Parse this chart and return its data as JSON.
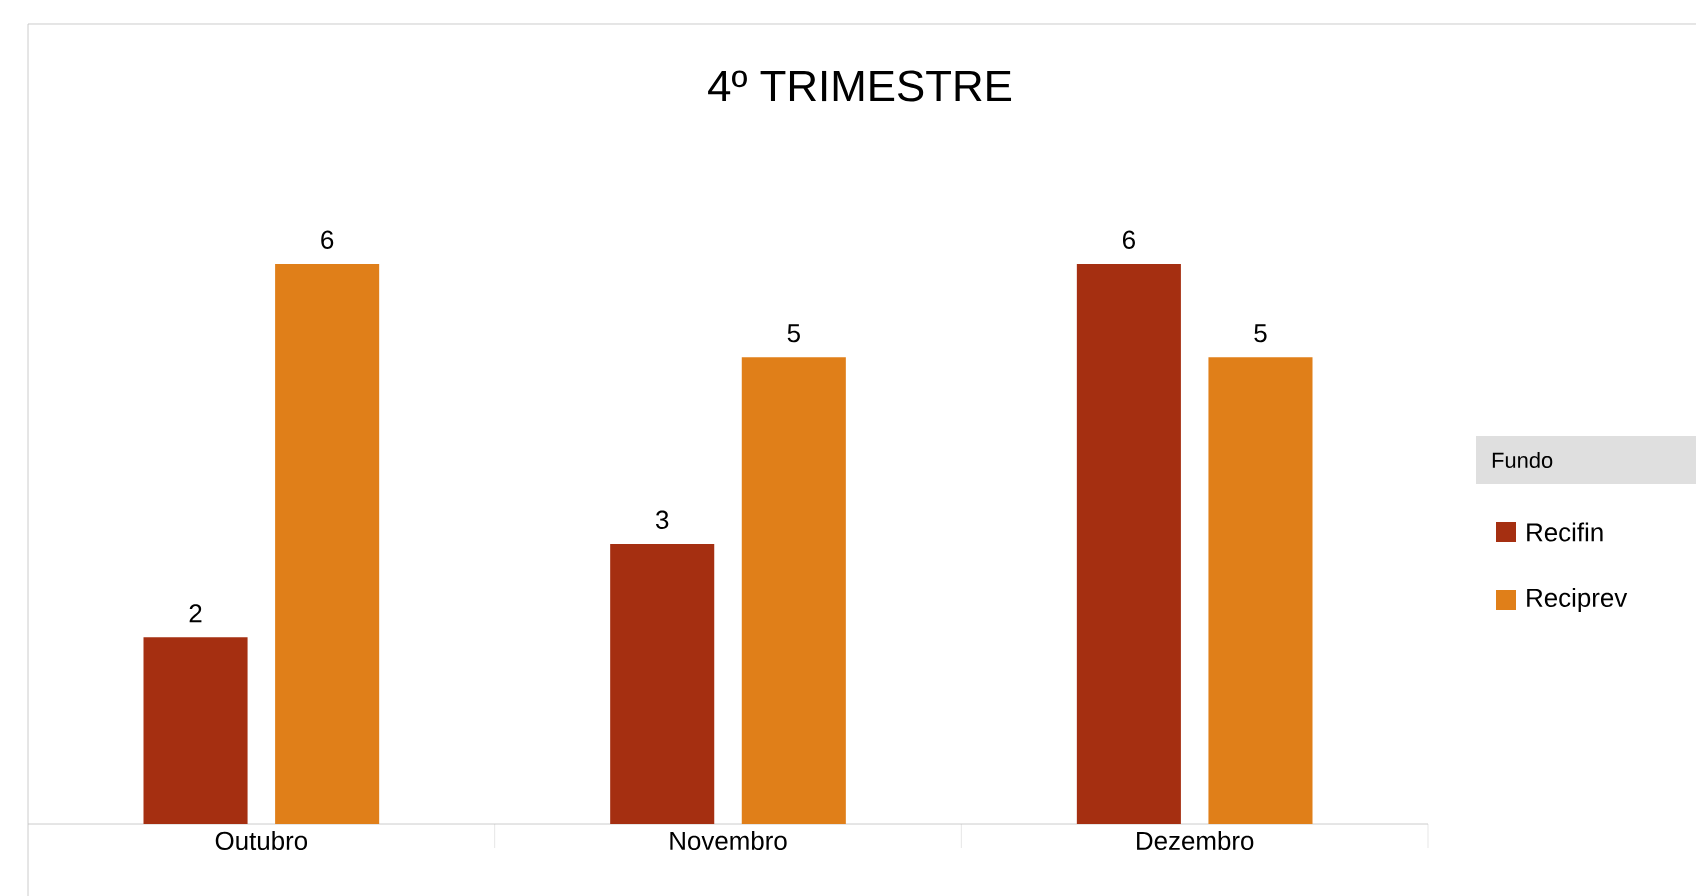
{
  "chart_data": {
    "type": "bar",
    "title": "4º TRIMESTRE",
    "legend_title": "Fundo",
    "categories": [
      "Outubro",
      "Novembro",
      "Dezembro"
    ],
    "series": [
      {
        "name": "Recifin",
        "color": "#a52f11",
        "values": [
          2,
          3,
          6
        ]
      },
      {
        "name": "Reciprev",
        "color": "#e07f19",
        "values": [
          6,
          5,
          5
        ]
      }
    ],
    "data_labels": true,
    "legend": "right",
    "grid": false
  }
}
